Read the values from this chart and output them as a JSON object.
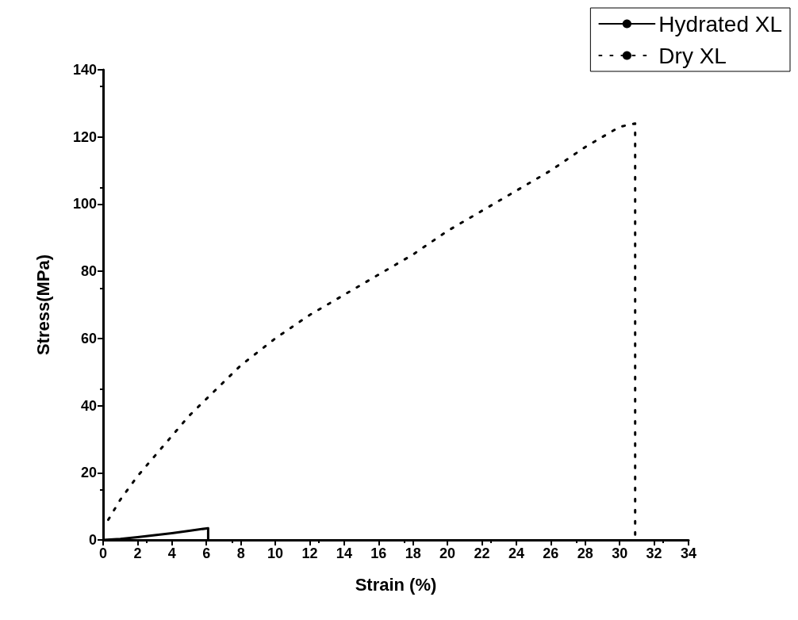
{
  "chart_data": {
    "type": "line",
    "xlabel": "Strain (%)",
    "ylabel": "Stress(MPa)",
    "xlim": [
      0,
      34
    ],
    "xticks": [
      0,
      2,
      4,
      6,
      8,
      10,
      12,
      14,
      16,
      18,
      20,
      22,
      24,
      26,
      28,
      30,
      32,
      34
    ],
    "ylim": [
      0,
      140
    ],
    "yticks": [
      0,
      20,
      40,
      60,
      80,
      100,
      120,
      140
    ],
    "grid": false,
    "legend": "top right",
    "marker": "none",
    "series": [
      {
        "name": "Hydrated XL",
        "color": "#000000",
        "line_style": "solid",
        "x": [
          0,
          1,
          2,
          3,
          4,
          5,
          6.1,
          6.1
        ],
        "values": [
          0,
          0.3,
          0.8,
          1.4,
          2,
          2.7,
          3.5,
          0
        ]
      },
      {
        "name": "Dry XL",
        "color": "#000000",
        "line_style": "dotted",
        "x": [
          0.3,
          1,
          2,
          3,
          4,
          5,
          6,
          7,
          8,
          10,
          12,
          14,
          16,
          18,
          20,
          22,
          24,
          26,
          28,
          30,
          30.9,
          30.9
        ],
        "values": [
          6,
          12,
          19,
          25,
          31,
          37,
          42,
          47,
          52,
          60,
          67,
          73,
          79,
          85,
          92,
          98,
          104,
          110,
          117,
          123,
          124,
          0
        ]
      }
    ]
  }
}
